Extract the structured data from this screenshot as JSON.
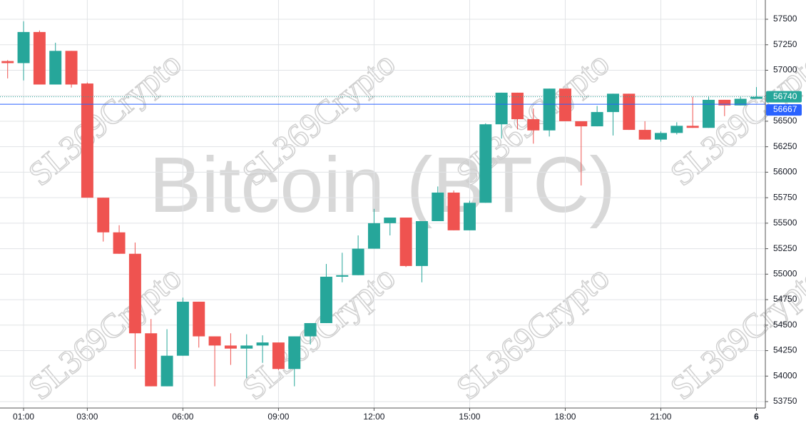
{
  "chart_data": {
    "type": "candlestick",
    "watermark": "Bitcoin (BTC)",
    "brand": "SL369Crypto",
    "x": [
      0.5,
      1,
      1.5,
      2,
      2.5,
      3,
      3.5,
      4,
      4.5,
      5,
      5.5,
      6,
      6.5,
      7,
      7.5,
      8,
      8.5,
      9,
      9.5,
      10,
      10.5,
      11,
      11.5,
      12,
      12.5,
      13,
      13.5,
      14,
      14.5,
      15,
      15.5,
      16,
      16.5,
      17,
      17.5,
      18,
      18.5,
      19,
      19.5,
      20,
      20.5,
      21,
      21.5,
      22,
      22.5,
      23,
      23.5,
      24
    ],
    "open": [
      57090,
      57070,
      57375,
      56860,
      57190,
      56870,
      55750,
      55410,
      55200,
      54420,
      53900,
      54200,
      54730,
      54390,
      54300,
      54270,
      54300,
      54330,
      54070,
      54390,
      54520,
      54975,
      54990,
      55250,
      55500,
      55555,
      55080,
      55520,
      55800,
      55430,
      55700,
      56470,
      56780,
      56520,
      56410,
      56820,
      56500,
      56450,
      56590,
      56770,
      56415,
      56320,
      56385,
      56455,
      56435,
      56710,
      56655,
      56720
    ],
    "high": [
      57100,
      57480,
      57390,
      57270,
      57190,
      56880,
      55750,
      55480,
      55310,
      54560,
      54460,
      54770,
      54730,
      54390,
      54420,
      54410,
      54400,
      54330,
      54390,
      54520,
      55100,
      55210,
      55380,
      55640,
      55555,
      55555,
      55520,
      55860,
      55820,
      55720,
      56480,
      56780,
      56780,
      56625,
      56820,
      56820,
      56500,
      56650,
      56770,
      56770,
      56500,
      56400,
      56490,
      56740,
      56745,
      56710,
      56740,
      56835
    ],
    "low": [
      56920,
      56900,
      56860,
      56860,
      56830,
      55750,
      55320,
      55200,
      54070,
      53900,
      53900,
      54200,
      54280,
      53900,
      54110,
      53980,
      54130,
      54060,
      53900,
      54310,
      54520,
      54920,
      54990,
      55250,
      55380,
      55070,
      54920,
      55520,
      55430,
      55430,
      55700,
      56330,
      56420,
      56280,
      56350,
      56500,
      55870,
      56450,
      56360,
      56415,
      56320,
      56300,
      56370,
      56435,
      56435,
      56550,
      56655,
      56720
    ],
    "close": [
      57070,
      57375,
      56860,
      57190,
      56860,
      55750,
      55410,
      55200,
      54420,
      53900,
      54200,
      54730,
      54390,
      54300,
      54270,
      54300,
      54330,
      54070,
      54390,
      54520,
      54975,
      54990,
      55250,
      55500,
      55555,
      55080,
      55520,
      55800,
      55430,
      55700,
      56470,
      56780,
      56520,
      56410,
      56820,
      56500,
      56450,
      56590,
      56770,
      56415,
      56320,
      56385,
      56455,
      56435,
      56710,
      56655,
      56720,
      56740
    ],
    "up_color": "#26a69a",
    "down_color": "#ef5350",
    "current_price": 56740,
    "reference_price": 56667,
    "reference_color": "#2962ff",
    "xlim": [
      0.26,
      24.28
    ],
    "xticks": [
      {
        "value": 1,
        "label": "01:00"
      },
      {
        "value": 3,
        "label": "03:00"
      },
      {
        "value": 6,
        "label": "06:00"
      },
      {
        "value": 9,
        "label": "09:00"
      },
      {
        "value": 12,
        "label": "12:00"
      },
      {
        "value": 15,
        "label": "15:00"
      },
      {
        "value": 18,
        "label": "18:00"
      },
      {
        "value": 21,
        "label": "21:00"
      },
      {
        "value": 24,
        "label": "6"
      }
    ],
    "ylim": [
      53687,
      57689
    ],
    "yticks": [
      53750,
      54000,
      54250,
      54500,
      54750,
      55000,
      55250,
      55500,
      55750,
      56000,
      56250,
      56500,
      56750,
      57000,
      57250,
      57500
    ],
    "grid": true
  }
}
